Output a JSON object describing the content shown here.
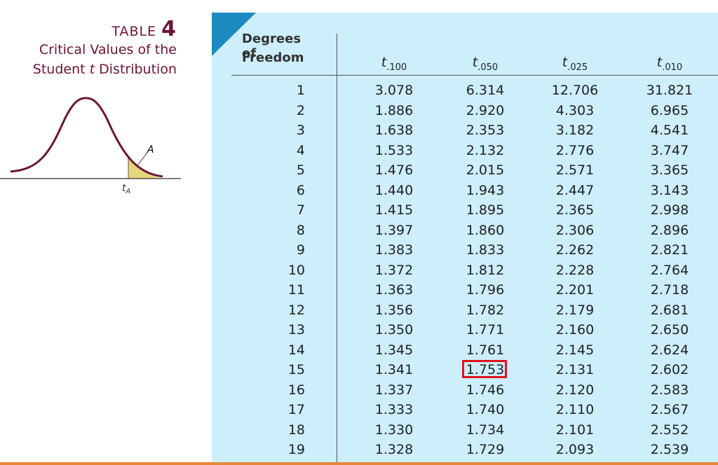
{
  "caption": {
    "label": "TABLE",
    "number": "4",
    "line1": "Critical Values of the",
    "line2_before": "Student",
    "line2_italic": "t",
    "line2_after": "Distribution"
  },
  "diagram": {
    "area_label": "A",
    "axis_symbol": "t",
    "axis_subscript": "A"
  },
  "table": {
    "stub_header": [
      "Degrees of",
      "Freedom"
    ],
    "columns": [
      {
        "symbol": "t",
        "subscript": ".100"
      },
      {
        "symbol": "t",
        "subscript": ".050"
      },
      {
        "symbol": "t",
        "subscript": ".025"
      },
      {
        "symbol": "t",
        "subscript": ".010"
      }
    ],
    "rows": [
      [
        "1",
        "3.078",
        "6.314",
        "12.706",
        "31.821"
      ],
      [
        "2",
        "1.886",
        "2.920",
        "4.303",
        "6.965"
      ],
      [
        "3",
        "1.638",
        "2.353",
        "3.182",
        "4.541"
      ],
      [
        "4",
        "1.533",
        "2.132",
        "2.776",
        "3.747"
      ],
      [
        "5",
        "1.476",
        "2.015",
        "2.571",
        "3.365"
      ],
      [
        "6",
        "1.440",
        "1.943",
        "2.447",
        "3.143"
      ],
      [
        "7",
        "1.415",
        "1.895",
        "2.365",
        "2.998"
      ],
      [
        "8",
        "1.397",
        "1.860",
        "2.306",
        "2.896"
      ],
      [
        "9",
        "1.383",
        "1.833",
        "2.262",
        "2.821"
      ],
      [
        "10",
        "1.372",
        "1.812",
        "2.228",
        "2.764"
      ],
      [
        "11",
        "1.363",
        "1.796",
        "2.201",
        "2.718"
      ],
      [
        "12",
        "1.356",
        "1.782",
        "2.179",
        "2.681"
      ],
      [
        "13",
        "1.350",
        "1.771",
        "2.160",
        "2.650"
      ],
      [
        "14",
        "1.345",
        "1.761",
        "2.145",
        "2.624"
      ],
      [
        "15",
        "1.341",
        "1.753",
        "2.131",
        "2.602"
      ],
      [
        "16",
        "1.337",
        "1.746",
        "2.120",
        "2.583"
      ],
      [
        "17",
        "1.333",
        "1.740",
        "2.110",
        "2.567"
      ],
      [
        "18",
        "1.330",
        "1.734",
        "2.101",
        "2.552"
      ],
      [
        "19",
        "1.328",
        "1.729",
        "2.093",
        "2.539"
      ]
    ],
    "highlight": {
      "row": 14,
      "col": 2
    }
  }
}
